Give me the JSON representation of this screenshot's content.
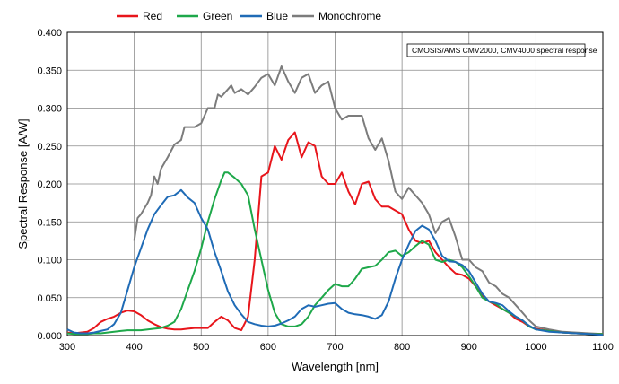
{
  "chart_data": {
    "type": "line",
    "title": "",
    "xlabel": "Wavelength [nm]",
    "ylabel": "Spectral Response [A/W]",
    "xlim": [
      300,
      1100
    ],
    "ylim": [
      0,
      0.4
    ],
    "x_ticks": [
      300,
      400,
      500,
      600,
      700,
      800,
      900,
      1000,
      1100
    ],
    "x_tick_labels": [
      "300",
      "400",
      "500",
      "600",
      "700",
      "800",
      "900",
      "1000",
      "1100"
    ],
    "y_ticks": [
      0,
      0.05,
      0.1,
      0.15,
      0.2,
      0.25,
      0.3,
      0.35,
      0.4
    ],
    "y_tick_labels": [
      "0.000",
      "0.050",
      "0.100",
      "0.150",
      "0.200",
      "0.250",
      "0.300",
      "0.350",
      "0.400"
    ],
    "grid": true,
    "legend_position": "top",
    "annotation": "CMOSIS/AMS CMV2000, CMV4000 spectral response",
    "series": [
      {
        "name": "Red",
        "color": "#e8151b",
        "points": [
          [
            300,
            0.004
          ],
          [
            310,
            0.003
          ],
          [
            320,
            0.004
          ],
          [
            330,
            0.005
          ],
          [
            340,
            0.01
          ],
          [
            350,
            0.018
          ],
          [
            360,
            0.022
          ],
          [
            370,
            0.025
          ],
          [
            380,
            0.03
          ],
          [
            390,
            0.033
          ],
          [
            400,
            0.032
          ],
          [
            410,
            0.027
          ],
          [
            420,
            0.02
          ],
          [
            430,
            0.015
          ],
          [
            440,
            0.011
          ],
          [
            450,
            0.009
          ],
          [
            460,
            0.008
          ],
          [
            470,
            0.008
          ],
          [
            480,
            0.009
          ],
          [
            490,
            0.01
          ],
          [
            500,
            0.01
          ],
          [
            510,
            0.01
          ],
          [
            520,
            0.018
          ],
          [
            530,
            0.025
          ],
          [
            540,
            0.02
          ],
          [
            550,
            0.01
          ],
          [
            560,
            0.007
          ],
          [
            570,
            0.025
          ],
          [
            580,
            0.1
          ],
          [
            590,
            0.21
          ],
          [
            600,
            0.215
          ],
          [
            610,
            0.25
          ],
          [
            620,
            0.232
          ],
          [
            630,
            0.258
          ],
          [
            640,
            0.268
          ],
          [
            650,
            0.235
          ],
          [
            660,
            0.255
          ],
          [
            670,
            0.25
          ],
          [
            680,
            0.21
          ],
          [
            690,
            0.2
          ],
          [
            700,
            0.2
          ],
          [
            710,
            0.215
          ],
          [
            720,
            0.19
          ],
          [
            730,
            0.173
          ],
          [
            740,
            0.2
          ],
          [
            750,
            0.203
          ],
          [
            760,
            0.18
          ],
          [
            770,
            0.17
          ],
          [
            780,
            0.17
          ],
          [
            790,
            0.165
          ],
          [
            800,
            0.16
          ],
          [
            810,
            0.14
          ],
          [
            820,
            0.125
          ],
          [
            830,
            0.122
          ],
          [
            840,
            0.125
          ],
          [
            850,
            0.11
          ],
          [
            860,
            0.1
          ],
          [
            870,
            0.09
          ],
          [
            880,
            0.082
          ],
          [
            890,
            0.08
          ],
          [
            900,
            0.075
          ],
          [
            910,
            0.065
          ],
          [
            920,
            0.052
          ],
          [
            930,
            0.045
          ],
          [
            940,
            0.04
          ],
          [
            950,
            0.035
          ],
          [
            960,
            0.03
          ],
          [
            970,
            0.022
          ],
          [
            980,
            0.018
          ],
          [
            990,
            0.012
          ],
          [
            1000,
            0.009
          ],
          [
            1020,
            0.006
          ],
          [
            1040,
            0.004
          ],
          [
            1060,
            0.003
          ],
          [
            1080,
            0.002
          ],
          [
            1100,
            0.002
          ]
        ]
      },
      {
        "name": "Green",
        "color": "#1ea84a",
        "points": [
          [
            300,
            0.003
          ],
          [
            310,
            0.002
          ],
          [
            320,
            0.002
          ],
          [
            330,
            0.002
          ],
          [
            340,
            0.003
          ],
          [
            350,
            0.003
          ],
          [
            360,
            0.004
          ],
          [
            370,
            0.005
          ],
          [
            380,
            0.006
          ],
          [
            390,
            0.007
          ],
          [
            400,
            0.007
          ],
          [
            410,
            0.007
          ],
          [
            420,
            0.008
          ],
          [
            430,
            0.009
          ],
          [
            440,
            0.01
          ],
          [
            450,
            0.013
          ],
          [
            460,
            0.018
          ],
          [
            470,
            0.035
          ],
          [
            480,
            0.06
          ],
          [
            490,
            0.085
          ],
          [
            500,
            0.115
          ],
          [
            510,
            0.15
          ],
          [
            520,
            0.18
          ],
          [
            530,
            0.205
          ],
          [
            535,
            0.215
          ],
          [
            540,
            0.215
          ],
          [
            550,
            0.208
          ],
          [
            560,
            0.2
          ],
          [
            570,
            0.185
          ],
          [
            580,
            0.14
          ],
          [
            590,
            0.1
          ],
          [
            600,
            0.06
          ],
          [
            610,
            0.03
          ],
          [
            620,
            0.015
          ],
          [
            630,
            0.012
          ],
          [
            640,
            0.012
          ],
          [
            650,
            0.015
          ],
          [
            660,
            0.025
          ],
          [
            670,
            0.04
          ],
          [
            680,
            0.05
          ],
          [
            690,
            0.06
          ],
          [
            700,
            0.068
          ],
          [
            710,
            0.065
          ],
          [
            720,
            0.065
          ],
          [
            730,
            0.075
          ],
          [
            740,
            0.088
          ],
          [
            750,
            0.09
          ],
          [
            760,
            0.092
          ],
          [
            770,
            0.1
          ],
          [
            780,
            0.11
          ],
          [
            790,
            0.112
          ],
          [
            800,
            0.105
          ],
          [
            810,
            0.11
          ],
          [
            820,
            0.118
          ],
          [
            830,
            0.125
          ],
          [
            840,
            0.12
          ],
          [
            850,
            0.1
          ],
          [
            860,
            0.097
          ],
          [
            870,
            0.1
          ],
          [
            880,
            0.097
          ],
          [
            890,
            0.09
          ],
          [
            900,
            0.078
          ],
          [
            910,
            0.065
          ],
          [
            920,
            0.05
          ],
          [
            930,
            0.045
          ],
          [
            940,
            0.042
          ],
          [
            950,
            0.035
          ],
          [
            960,
            0.03
          ],
          [
            970,
            0.025
          ],
          [
            980,
            0.02
          ],
          [
            990,
            0.012
          ],
          [
            1000,
            0.008
          ],
          [
            1020,
            0.006
          ],
          [
            1040,
            0.004
          ],
          [
            1060,
            0.003
          ],
          [
            1080,
            0.002
          ],
          [
            1100,
            0.002
          ]
        ]
      },
      {
        "name": "Blue",
        "color": "#1f6bb6",
        "points": [
          [
            300,
            0.008
          ],
          [
            310,
            0.004
          ],
          [
            320,
            0.003
          ],
          [
            330,
            0.003
          ],
          [
            340,
            0.004
          ],
          [
            350,
            0.006
          ],
          [
            360,
            0.008
          ],
          [
            370,
            0.015
          ],
          [
            380,
            0.03
          ],
          [
            390,
            0.06
          ],
          [
            400,
            0.09
          ],
          [
            410,
            0.115
          ],
          [
            420,
            0.14
          ],
          [
            430,
            0.16
          ],
          [
            440,
            0.172
          ],
          [
            450,
            0.183
          ],
          [
            460,
            0.185
          ],
          [
            470,
            0.192
          ],
          [
            480,
            0.182
          ],
          [
            490,
            0.175
          ],
          [
            500,
            0.155
          ],
          [
            510,
            0.14
          ],
          [
            520,
            0.11
          ],
          [
            530,
            0.085
          ],
          [
            540,
            0.058
          ],
          [
            550,
            0.04
          ],
          [
            560,
            0.028
          ],
          [
            570,
            0.018
          ],
          [
            580,
            0.015
          ],
          [
            590,
            0.013
          ],
          [
            600,
            0.012
          ],
          [
            610,
            0.013
          ],
          [
            620,
            0.016
          ],
          [
            630,
            0.02
          ],
          [
            640,
            0.025
          ],
          [
            650,
            0.035
          ],
          [
            660,
            0.04
          ],
          [
            670,
            0.038
          ],
          [
            680,
            0.04
          ],
          [
            690,
            0.042
          ],
          [
            700,
            0.043
          ],
          [
            710,
            0.035
          ],
          [
            720,
            0.03
          ],
          [
            730,
            0.028
          ],
          [
            740,
            0.027
          ],
          [
            750,
            0.025
          ],
          [
            760,
            0.022
          ],
          [
            770,
            0.027
          ],
          [
            780,
            0.045
          ],
          [
            790,
            0.075
          ],
          [
            800,
            0.1
          ],
          [
            810,
            0.12
          ],
          [
            820,
            0.138
          ],
          [
            830,
            0.145
          ],
          [
            840,
            0.14
          ],
          [
            850,
            0.125
          ],
          [
            860,
            0.105
          ],
          [
            870,
            0.098
          ],
          [
            880,
            0.097
          ],
          [
            890,
            0.093
          ],
          [
            900,
            0.085
          ],
          [
            910,
            0.07
          ],
          [
            920,
            0.055
          ],
          [
            930,
            0.045
          ],
          [
            940,
            0.043
          ],
          [
            950,
            0.04
          ],
          [
            960,
            0.032
          ],
          [
            970,
            0.025
          ],
          [
            980,
            0.02
          ],
          [
            990,
            0.013
          ],
          [
            1000,
            0.008
          ],
          [
            1020,
            0.005
          ],
          [
            1040,
            0.004
          ],
          [
            1060,
            0.003
          ],
          [
            1080,
            0.002
          ],
          [
            1100,
            0.001
          ]
        ]
      },
      {
        "name": "Monochrome",
        "color": "#7c7c7c",
        "points": [
          [
            400,
            0.125
          ],
          [
            405,
            0.155
          ],
          [
            410,
            0.16
          ],
          [
            420,
            0.175
          ],
          [
            425,
            0.185
          ],
          [
            430,
            0.21
          ],
          [
            435,
            0.2
          ],
          [
            440,
            0.22
          ],
          [
            450,
            0.235
          ],
          [
            460,
            0.252
          ],
          [
            470,
            0.258
          ],
          [
            475,
            0.275
          ],
          [
            480,
            0.275
          ],
          [
            490,
            0.275
          ],
          [
            500,
            0.28
          ],
          [
            510,
            0.3
          ],
          [
            520,
            0.3
          ],
          [
            525,
            0.318
          ],
          [
            530,
            0.315
          ],
          [
            540,
            0.325
          ],
          [
            545,
            0.33
          ],
          [
            550,
            0.32
          ],
          [
            560,
            0.325
          ],
          [
            570,
            0.318
          ],
          [
            580,
            0.328
          ],
          [
            590,
            0.34
          ],
          [
            600,
            0.345
          ],
          [
            610,
            0.33
          ],
          [
            620,
            0.355
          ],
          [
            630,
            0.335
          ],
          [
            640,
            0.32
          ],
          [
            650,
            0.34
          ],
          [
            660,
            0.345
          ],
          [
            670,
            0.32
          ],
          [
            680,
            0.33
          ],
          [
            690,
            0.335
          ],
          [
            700,
            0.3
          ],
          [
            710,
            0.285
          ],
          [
            720,
            0.29
          ],
          [
            730,
            0.29
          ],
          [
            740,
            0.29
          ],
          [
            750,
            0.26
          ],
          [
            760,
            0.245
          ],
          [
            770,
            0.26
          ],
          [
            780,
            0.23
          ],
          [
            790,
            0.19
          ],
          [
            800,
            0.18
          ],
          [
            810,
            0.195
          ],
          [
            820,
            0.185
          ],
          [
            830,
            0.175
          ],
          [
            840,
            0.16
          ],
          [
            850,
            0.135
          ],
          [
            860,
            0.15
          ],
          [
            870,
            0.155
          ],
          [
            880,
            0.13
          ],
          [
            890,
            0.1
          ],
          [
            900,
            0.1
          ],
          [
            910,
            0.09
          ],
          [
            920,
            0.085
          ],
          [
            930,
            0.07
          ],
          [
            940,
            0.065
          ],
          [
            950,
            0.055
          ],
          [
            960,
            0.05
          ],
          [
            970,
            0.04
          ],
          [
            980,
            0.03
          ],
          [
            990,
            0.02
          ],
          [
            1000,
            0.012
          ],
          [
            1020,
            0.008
          ],
          [
            1040,
            0.005
          ],
          [
            1060,
            0.004
          ],
          [
            1080,
            0.003
          ],
          [
            1100,
            0.002
          ]
        ]
      }
    ]
  }
}
